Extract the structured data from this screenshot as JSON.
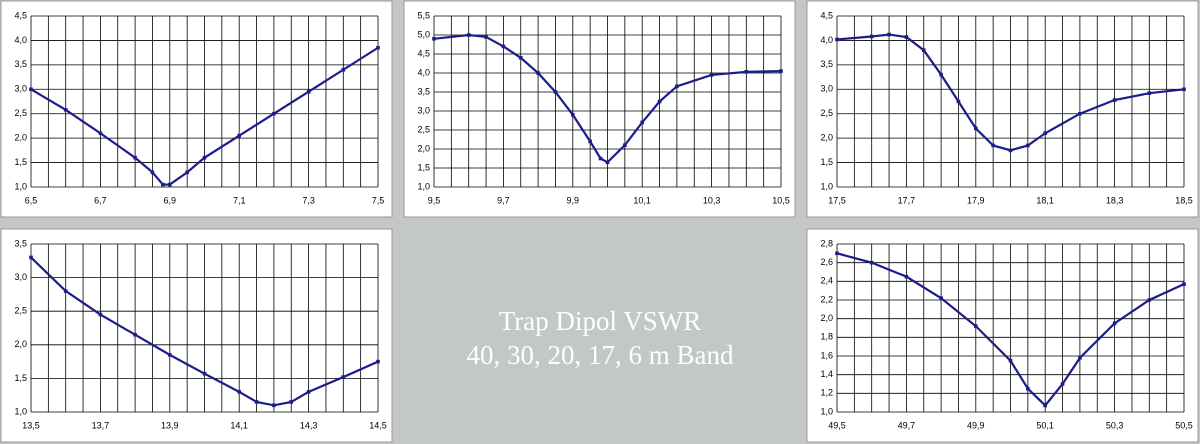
{
  "chart_data": [
    {
      "type": "line",
      "color": "#1c1c8c",
      "grid": true,
      "x_minor_divisions": 4,
      "xlim": [
        6.5,
        7.5
      ],
      "xticks": [
        {
          "value": 6.5,
          "label": "6,5"
        },
        {
          "value": 6.7,
          "label": "6,7"
        },
        {
          "value": 6.9,
          "label": "6,9"
        },
        {
          "value": 7.1,
          "label": "7,1"
        },
        {
          "value": 7.3,
          "label": "7,3"
        },
        {
          "value": 7.5,
          "label": "7,5"
        }
      ],
      "ylim": [
        1.0,
        4.5
      ],
      "yticks": [
        {
          "value": 1.0,
          "label": "1,0"
        },
        {
          "value": 1.5,
          "label": "1,5"
        },
        {
          "value": 2.0,
          "label": "2,0"
        },
        {
          "value": 2.5,
          "label": "2,5"
        },
        {
          "value": 3.0,
          "label": "3,0"
        },
        {
          "value": 3.5,
          "label": "3,5"
        },
        {
          "value": 4.0,
          "label": "4,0"
        },
        {
          "value": 4.5,
          "label": "4,5"
        }
      ],
      "x": [
        6.5,
        6.6,
        6.7,
        6.8,
        6.85,
        6.88,
        6.9,
        6.95,
        7.0,
        7.1,
        7.2,
        7.3,
        7.4,
        7.5
      ],
      "values": [
        3.0,
        2.58,
        2.1,
        1.6,
        1.3,
        1.05,
        1.05,
        1.3,
        1.6,
        2.05,
        2.5,
        2.95,
        3.4,
        3.85
      ]
    },
    {
      "type": "line",
      "color": "#1c1c8c",
      "grid": true,
      "x_minor_divisions": 4,
      "xlim": [
        9.5,
        10.5
      ],
      "xticks": [
        {
          "value": 9.5,
          "label": "9,5"
        },
        {
          "value": 9.7,
          "label": "9,7"
        },
        {
          "value": 9.9,
          "label": "9,9"
        },
        {
          "value": 10.1,
          "label": "10,1"
        },
        {
          "value": 10.3,
          "label": "10,3"
        },
        {
          "value": 10.5,
          "label": "10,5"
        }
      ],
      "ylim": [
        1.0,
        5.5
      ],
      "yticks": [
        {
          "value": 1.0,
          "label": "1,0"
        },
        {
          "value": 1.5,
          "label": "1,5"
        },
        {
          "value": 2.0,
          "label": "2,0"
        },
        {
          "value": 2.5,
          "label": "2,5"
        },
        {
          "value": 3.0,
          "label": "3,0"
        },
        {
          "value": 3.5,
          "label": "3,5"
        },
        {
          "value": 4.0,
          "label": "4,0"
        },
        {
          "value": 4.5,
          "label": "4,5"
        },
        {
          "value": 5.0,
          "label": "5,0"
        },
        {
          "value": 5.5,
          "label": "5,5"
        }
      ],
      "x": [
        9.5,
        9.6,
        9.65,
        9.7,
        9.75,
        9.8,
        9.85,
        9.9,
        9.95,
        9.98,
        10.0,
        10.05,
        10.1,
        10.15,
        10.2,
        10.3,
        10.4,
        10.5
      ],
      "values": [
        4.9,
        5.0,
        4.95,
        4.7,
        4.4,
        4.0,
        3.5,
        2.9,
        2.2,
        1.75,
        1.65,
        2.1,
        2.7,
        3.25,
        3.65,
        3.95,
        4.03,
        4.05
      ]
    },
    {
      "type": "line",
      "color": "#1c1c8c",
      "grid": true,
      "x_minor_divisions": 4,
      "xlim": [
        17.5,
        18.5
      ],
      "xticks": [
        {
          "value": 17.5,
          "label": "17,5"
        },
        {
          "value": 17.7,
          "label": "17,7"
        },
        {
          "value": 17.9,
          "label": "17,9"
        },
        {
          "value": 18.1,
          "label": "18,1"
        },
        {
          "value": 18.3,
          "label": "18,3"
        },
        {
          "value": 18.5,
          "label": "18,5"
        }
      ],
      "ylim": [
        1.0,
        4.5
      ],
      "yticks": [
        {
          "value": 1.0,
          "label": "1,0"
        },
        {
          "value": 1.5,
          "label": "1,5"
        },
        {
          "value": 2.0,
          "label": "2,0"
        },
        {
          "value": 2.5,
          "label": "2,5"
        },
        {
          "value": 3.0,
          "label": "3,0"
        },
        {
          "value": 3.5,
          "label": "3,5"
        },
        {
          "value": 4.0,
          "label": "4,0"
        },
        {
          "value": 4.5,
          "label": "4,5"
        }
      ],
      "x": [
        17.5,
        17.6,
        17.65,
        17.7,
        17.75,
        17.8,
        17.85,
        17.9,
        17.95,
        18.0,
        18.05,
        18.1,
        18.2,
        18.3,
        18.4,
        18.5
      ],
      "values": [
        4.02,
        4.08,
        4.12,
        4.07,
        3.8,
        3.3,
        2.75,
        2.2,
        1.85,
        1.75,
        1.85,
        2.1,
        2.5,
        2.78,
        2.92,
        3.0
      ]
    },
    {
      "type": "line",
      "color": "#1c1c8c",
      "grid": true,
      "x_minor_divisions": 4,
      "xlim": [
        13.5,
        14.5
      ],
      "xticks": [
        {
          "value": 13.5,
          "label": "13,5"
        },
        {
          "value": 13.7,
          "label": "13,7"
        },
        {
          "value": 13.9,
          "label": "13,9"
        },
        {
          "value": 14.1,
          "label": "14,1"
        },
        {
          "value": 14.3,
          "label": "14,3"
        },
        {
          "value": 14.5,
          "label": "14,5"
        }
      ],
      "ylim": [
        1.0,
        3.5
      ],
      "yticks": [
        {
          "value": 1.0,
          "label": "1,0"
        },
        {
          "value": 1.5,
          "label": "1,5"
        },
        {
          "value": 2.0,
          "label": "2,0"
        },
        {
          "value": 2.5,
          "label": "2,5"
        },
        {
          "value": 3.0,
          "label": "3,0"
        },
        {
          "value": 3.5,
          "label": "3,5"
        }
      ],
      "x": [
        13.5,
        13.6,
        13.7,
        13.8,
        13.9,
        14.0,
        14.1,
        14.15,
        14.2,
        14.25,
        14.3,
        14.4,
        14.5
      ],
      "values": [
        3.3,
        2.8,
        2.45,
        2.15,
        1.85,
        1.57,
        1.3,
        1.15,
        1.1,
        1.15,
        1.3,
        1.52,
        1.75
      ]
    },
    {
      "type": "line",
      "color": "#1c1c8c",
      "grid": true,
      "x_minor_divisions": 4,
      "xlim": [
        49.5,
        50.5
      ],
      "xticks": [
        {
          "value": 49.5,
          "label": "49,5"
        },
        {
          "value": 49.7,
          "label": "49,7"
        },
        {
          "value": 49.9,
          "label": "49,9"
        },
        {
          "value": 50.1,
          "label": "50,1"
        },
        {
          "value": 50.3,
          "label": "50,3"
        },
        {
          "value": 50.5,
          "label": "50,5"
        }
      ],
      "ylim": [
        1.0,
        2.8
      ],
      "yticks": [
        {
          "value": 1.0,
          "label": "1,0"
        },
        {
          "value": 1.2,
          "label": "1,2"
        },
        {
          "value": 1.4,
          "label": "1,4"
        },
        {
          "value": 1.6,
          "label": "1,6"
        },
        {
          "value": 1.8,
          "label": "1,8"
        },
        {
          "value": 2.0,
          "label": "2,0"
        },
        {
          "value": 2.2,
          "label": "2,2"
        },
        {
          "value": 2.4,
          "label": "2,4"
        },
        {
          "value": 2.6,
          "label": "2,6"
        },
        {
          "value": 2.8,
          "label": "2,8"
        }
      ],
      "x": [
        49.5,
        49.6,
        49.7,
        49.8,
        49.9,
        50.0,
        50.05,
        50.1,
        50.15,
        50.2,
        50.3,
        50.4,
        50.5
      ],
      "values": [
        2.7,
        2.6,
        2.45,
        2.22,
        1.92,
        1.55,
        1.25,
        1.07,
        1.3,
        1.58,
        1.95,
        2.2,
        2.37
      ]
    }
  ],
  "title_panel": {
    "lines": [
      "Trap Dipol VSWR",
      "40, 30, 20, 17, 6 m Band"
    ]
  }
}
